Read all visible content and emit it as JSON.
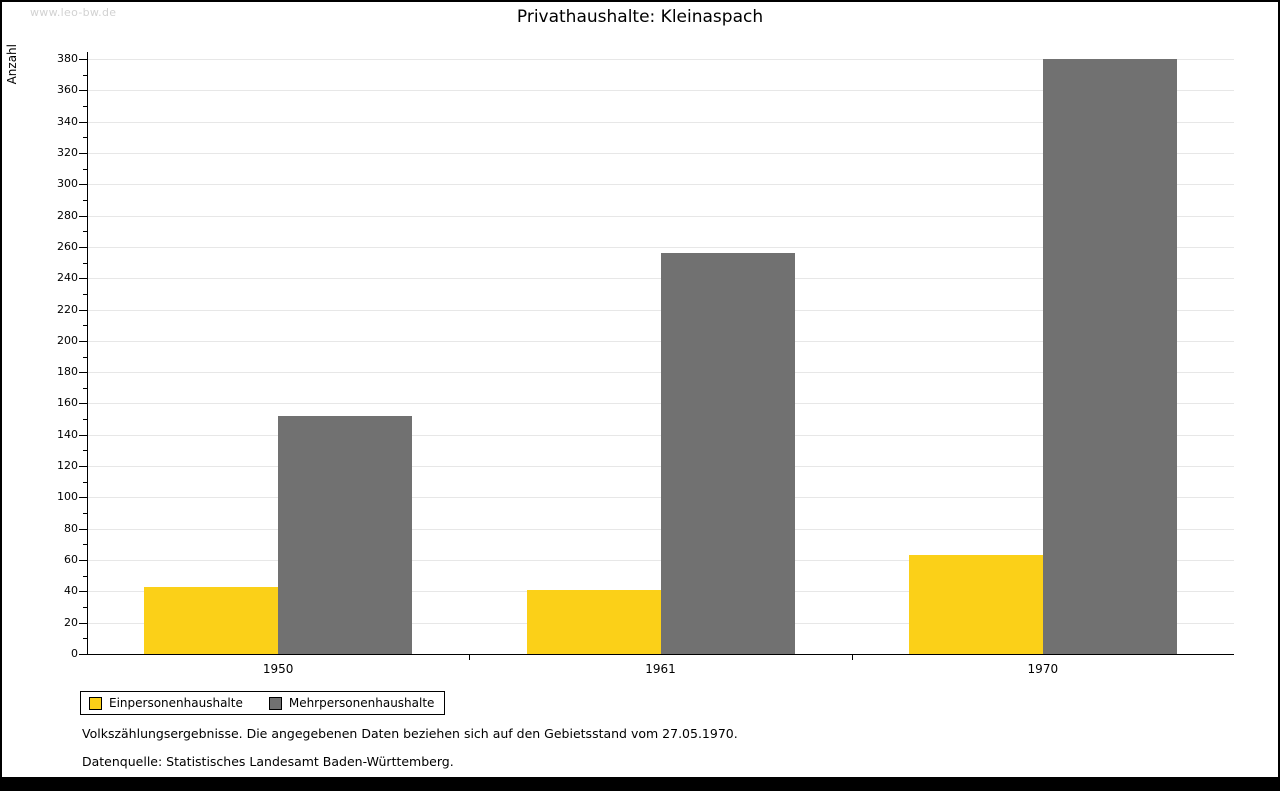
{
  "watermark": "www.leo-bw.de",
  "title": "Privathaushalte: Kleinaspach",
  "chart_data": {
    "type": "bar",
    "title": "Privathaushalte: Kleinaspach",
    "categories": [
      "1950",
      "1961",
      "1970"
    ],
    "series": [
      {
        "name": "Einpersonenhaushalte",
        "color": "#FBD018",
        "values": [
          43,
          41,
          63
        ]
      },
      {
        "name": "Mehrpersonenhaushalte",
        "color": "#717171",
        "values": [
          152,
          256,
          380
        ]
      }
    ],
    "xlabel": "",
    "ylabel": "Anzahl",
    "ylim": [
      0,
      380
    ],
    "ytick_step": 20,
    "ytick_minor_step": 10,
    "grid": true,
    "legend_position": "bottom-left",
    "colors": {
      "axis": "#000000",
      "gridline": "#e7e7e7",
      "background": "#ffffff"
    }
  },
  "footnotes": [
    "Volkszählungsergebnisse. Die angegebenen Daten beziehen sich auf den Gebietsstand vom 27.05.1970.",
    "Datenquelle: Statistisches Landesamt Baden-Württemberg."
  ]
}
